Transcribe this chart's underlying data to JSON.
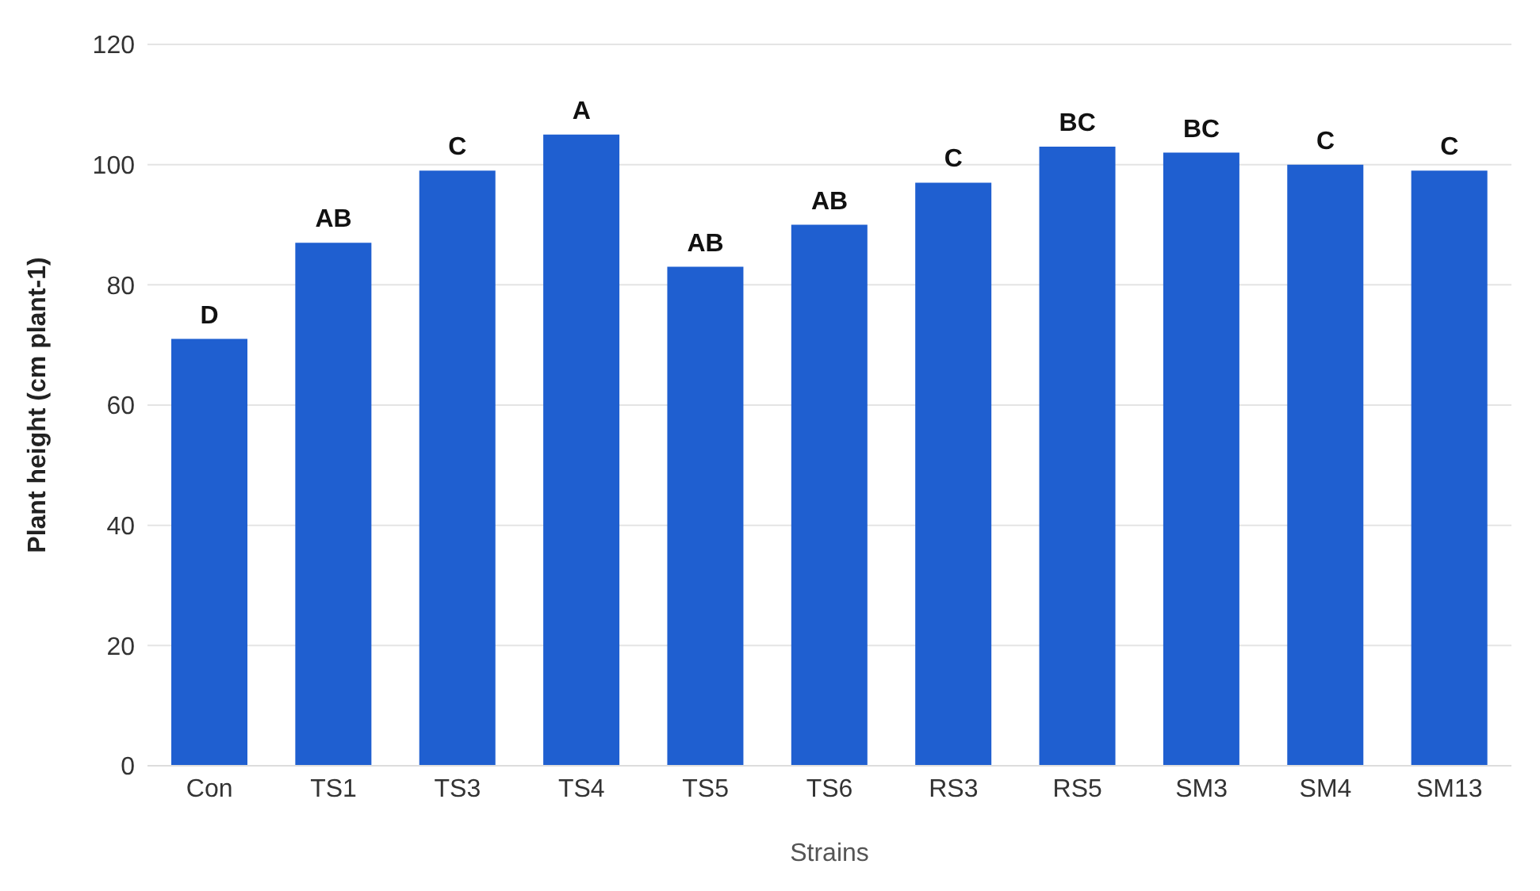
{
  "chart_data": {
    "type": "bar",
    "xlabel": "Strains",
    "ylabel": "Plant height (cm plant-1)",
    "categories": [
      "Con",
      "TS1",
      "TS3",
      "TS4",
      "TS5",
      "TS6",
      "RS3",
      "RS5",
      "SM3",
      "SM4",
      "SM13"
    ],
    "values": [
      71,
      87,
      99,
      105,
      83,
      90,
      97,
      103,
      102,
      100,
      99
    ],
    "color": "#1f5fd0",
    "ylim": [
      0,
      120
    ],
    "yticks": [
      0,
      20,
      40,
      60,
      80,
      100,
      120
    ],
    "grid": "y",
    "annotations": [
      {
        "text": "D",
        "x": "Con",
        "y": 71
      },
      {
        "text": "AB",
        "x": "TS1",
        "y": 87
      },
      {
        "text": "C",
        "x": "TS3",
        "y": 99
      },
      {
        "text": "A",
        "x": "TS4",
        "y": 105
      },
      {
        "text": "AB",
        "x": "TS5",
        "y": 83
      },
      {
        "text": "AB",
        "x": "TS6",
        "y": 90
      },
      {
        "text": "C",
        "x": "RS3",
        "y": 97
      },
      {
        "text": "BC",
        "x": "RS5",
        "y": 103
      },
      {
        "text": "BC",
        "x": "SM3",
        "y": 102
      },
      {
        "text": "C",
        "x": "SM4",
        "y": 100
      },
      {
        "text": "C",
        "x": "SM13",
        "y": 99
      }
    ]
  }
}
